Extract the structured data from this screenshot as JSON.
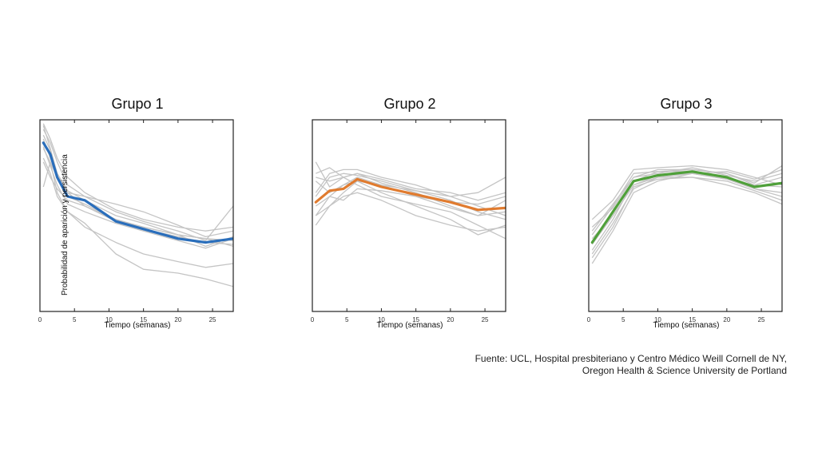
{
  "chart_data": [
    {
      "type": "line",
      "title": "Grupo 1",
      "xlabel": "Tiempo (semanas)",
      "ylabel": "Probabilidad de aparición y persistencia",
      "xlim": [
        0,
        28
      ],
      "ylim": [
        0,
        1
      ],
      "xticks": [
        0,
        5,
        10,
        15,
        20,
        25
      ],
      "accent_color": "#2a6ebb",
      "background_color": "#c4c4c4",
      "grid": false,
      "mean": {
        "x": [
          0.5,
          1.5,
          2.5,
          4,
          6.5,
          11,
          15,
          20,
          24,
          28
        ],
        "y": [
          0.88,
          0.82,
          0.7,
          0.6,
          0.58,
          0.47,
          0.43,
          0.38,
          0.36,
          0.38
        ]
      },
      "background_series": [
        {
          "x": [
            0.5,
            1.5,
            2.5,
            4,
            6.5,
            11,
            15,
            20,
            24,
            28
          ],
          "y": [
            0.97,
            0.85,
            0.72,
            0.62,
            0.55,
            0.47,
            0.44,
            0.4,
            0.34,
            0.39
          ]
        },
        {
          "x": [
            0.5,
            1.5,
            2.5,
            4,
            6.5,
            11,
            15,
            20,
            24,
            28
          ],
          "y": [
            0.8,
            0.72,
            0.6,
            0.52,
            0.44,
            0.36,
            0.3,
            0.26,
            0.23,
            0.25
          ]
        },
        {
          "x": [
            0.5,
            1.5,
            2.5,
            4,
            6.5,
            11,
            15,
            20,
            24,
            28
          ],
          "y": [
            0.98,
            0.9,
            0.8,
            0.7,
            0.62,
            0.53,
            0.48,
            0.44,
            0.42,
            0.44
          ]
        },
        {
          "x": [
            0.5,
            1.5,
            2.5,
            4,
            6.5,
            11,
            15,
            20,
            24,
            28
          ],
          "y": [
            0.85,
            0.78,
            0.62,
            0.52,
            0.46,
            0.3,
            0.22,
            0.2,
            0.17,
            0.13
          ]
        },
        {
          "x": [
            0.5,
            1.5,
            2.5,
            4,
            6.5,
            11,
            15,
            20,
            24,
            28
          ],
          "y": [
            0.9,
            0.8,
            0.72,
            0.63,
            0.58,
            0.5,
            0.46,
            0.4,
            0.38,
            0.37
          ]
        },
        {
          "x": [
            0.5,
            1.5,
            2.5,
            4,
            6.5,
            11,
            15,
            20,
            24,
            28
          ],
          "y": [
            0.65,
            0.78,
            0.7,
            0.62,
            0.6,
            0.56,
            0.52,
            0.45,
            0.39,
            0.42
          ]
        },
        {
          "x": [
            0.5,
            1.5,
            2.5,
            4,
            6.5,
            11,
            15,
            20,
            24,
            28
          ],
          "y": [
            0.92,
            0.84,
            0.7,
            0.6,
            0.56,
            0.48,
            0.43,
            0.39,
            0.36,
            0.35
          ]
        },
        {
          "x": [
            0.5,
            1.5,
            2.5,
            4,
            6.5,
            11,
            15,
            20,
            24,
            28
          ],
          "y": [
            0.86,
            0.76,
            0.66,
            0.56,
            0.52,
            0.46,
            0.42,
            0.37,
            0.33,
            0.38
          ]
        },
        {
          "x": [
            0.5,
            1.5,
            2.5,
            4,
            6.5,
            11,
            15,
            20,
            24,
            28
          ],
          "y": [
            0.95,
            0.88,
            0.78,
            0.66,
            0.6,
            0.52,
            0.47,
            0.42,
            0.37,
            0.55
          ]
        },
        {
          "x": [
            0.5,
            1.5,
            2.5,
            4,
            6.5,
            11,
            15,
            20,
            24,
            28
          ],
          "y": [
            0.78,
            0.7,
            0.64,
            0.58,
            0.55,
            0.48,
            0.44,
            0.4,
            0.38,
            0.34
          ]
        }
      ]
    },
    {
      "type": "line",
      "title": "Grupo 2",
      "xlabel": "Tiempo (semanas)",
      "ylabel": "",
      "xlim": [
        0,
        28
      ],
      "ylim": [
        0,
        1
      ],
      "xticks": [
        0,
        5,
        10,
        15,
        20,
        25
      ],
      "accent_color": "#e07b2f",
      "background_color": "#c4c4c4",
      "grid": false,
      "mean": {
        "x": [
          0.5,
          2.5,
          4.5,
          6.5,
          10,
          15,
          20,
          24,
          28
        ],
        "y": [
          0.57,
          0.63,
          0.64,
          0.69,
          0.65,
          0.61,
          0.57,
          0.53,
          0.54
        ]
      },
      "background_series": [
        {
          "x": [
            0.5,
            2.5,
            4.5,
            6.5,
            10,
            15,
            20,
            24,
            28
          ],
          "y": [
            0.78,
            0.65,
            0.7,
            0.72,
            0.67,
            0.62,
            0.55,
            0.5,
            0.58
          ]
        },
        {
          "x": [
            0.5,
            2.5,
            4.5,
            6.5,
            10,
            15,
            20,
            24,
            28
          ],
          "y": [
            0.5,
            0.6,
            0.66,
            0.68,
            0.62,
            0.55,
            0.48,
            0.4,
            0.45
          ]
        },
        {
          "x": [
            0.5,
            2.5,
            4.5,
            6.5,
            10,
            15,
            20,
            24,
            28
          ],
          "y": [
            0.62,
            0.72,
            0.74,
            0.74,
            0.7,
            0.66,
            0.6,
            0.55,
            0.5
          ]
        },
        {
          "x": [
            0.5,
            2.5,
            4.5,
            6.5,
            10,
            15,
            20,
            24,
            28
          ],
          "y": [
            0.45,
            0.55,
            0.62,
            0.68,
            0.66,
            0.63,
            0.6,
            0.62,
            0.7
          ]
        },
        {
          "x": [
            0.5,
            2.5,
            4.5,
            6.5,
            10,
            15,
            20,
            24,
            28
          ],
          "y": [
            0.7,
            0.68,
            0.7,
            0.66,
            0.6,
            0.56,
            0.52,
            0.45,
            0.38
          ]
        },
        {
          "x": [
            0.5,
            2.5,
            4.5,
            6.5,
            10,
            15,
            20,
            24,
            28
          ],
          "y": [
            0.55,
            0.6,
            0.58,
            0.64,
            0.63,
            0.6,
            0.57,
            0.56,
            0.6
          ]
        },
        {
          "x": [
            0.5,
            2.5,
            4.5,
            6.5,
            10,
            15,
            20,
            24,
            28
          ],
          "y": [
            0.6,
            0.7,
            0.72,
            0.71,
            0.68,
            0.63,
            0.58,
            0.52,
            0.48
          ]
        },
        {
          "x": [
            0.5,
            2.5,
            4.5,
            6.5,
            10,
            15,
            20,
            24,
            28
          ],
          "y": [
            0.68,
            0.62,
            0.66,
            0.7,
            0.66,
            0.6,
            0.54,
            0.5,
            0.52
          ]
        },
        {
          "x": [
            0.5,
            2.5,
            4.5,
            6.5,
            10,
            15,
            20,
            24,
            28
          ],
          "y": [
            0.5,
            0.55,
            0.6,
            0.62,
            0.58,
            0.5,
            0.45,
            0.42,
            0.44
          ]
        },
        {
          "x": [
            0.5,
            2.5,
            4.5,
            6.5,
            10,
            15,
            20,
            24,
            28
          ],
          "y": [
            0.72,
            0.75,
            0.7,
            0.72,
            0.69,
            0.64,
            0.62,
            0.58,
            0.62
          ]
        }
      ]
    },
    {
      "type": "line",
      "title": "Grupo 3",
      "xlabel": "Tiempo (semanas)",
      "ylabel": "",
      "xlim": [
        0,
        28
      ],
      "ylim": [
        0,
        1
      ],
      "xticks": [
        0,
        5,
        10,
        15,
        20,
        25
      ],
      "accent_color": "#4fa03a",
      "background_color": "#c4c4c4",
      "grid": false,
      "mean": {
        "x": [
          0.5,
          3.5,
          6.5,
          10,
          15,
          20,
          24,
          28
        ],
        "y": [
          0.36,
          0.52,
          0.68,
          0.71,
          0.73,
          0.7,
          0.65,
          0.67
        ]
      },
      "background_series": [
        {
          "x": [
            0.5,
            3.5,
            6.5,
            10,
            15,
            20,
            24,
            28
          ],
          "y": [
            0.4,
            0.55,
            0.72,
            0.73,
            0.74,
            0.72,
            0.66,
            0.7
          ]
        },
        {
          "x": [
            0.5,
            3.5,
            6.5,
            10,
            15,
            20,
            24,
            28
          ],
          "y": [
            0.3,
            0.46,
            0.64,
            0.7,
            0.72,
            0.69,
            0.64,
            0.6
          ]
        },
        {
          "x": [
            0.5,
            3.5,
            6.5,
            10,
            15,
            20,
            24,
            28
          ],
          "y": [
            0.48,
            0.58,
            0.74,
            0.75,
            0.76,
            0.74,
            0.7,
            0.66
          ]
        },
        {
          "x": [
            0.5,
            3.5,
            6.5,
            10,
            15,
            20,
            24,
            28
          ],
          "y": [
            0.25,
            0.42,
            0.62,
            0.68,
            0.72,
            0.73,
            0.69,
            0.74
          ]
        },
        {
          "x": [
            0.5,
            3.5,
            6.5,
            10,
            15,
            20,
            24,
            28
          ],
          "y": [
            0.38,
            0.5,
            0.66,
            0.7,
            0.7,
            0.66,
            0.62,
            0.56
          ]
        },
        {
          "x": [
            0.5,
            3.5,
            6.5,
            10,
            15,
            20,
            24,
            28
          ],
          "y": [
            0.42,
            0.56,
            0.7,
            0.72,
            0.75,
            0.71,
            0.68,
            0.72
          ]
        },
        {
          "x": [
            0.5,
            3.5,
            6.5,
            10,
            15,
            20,
            24,
            28
          ],
          "y": [
            0.32,
            0.48,
            0.68,
            0.73,
            0.73,
            0.7,
            0.64,
            0.62
          ]
        },
        {
          "x": [
            0.5,
            3.5,
            6.5,
            10,
            15,
            20,
            24,
            28
          ],
          "y": [
            0.44,
            0.54,
            0.7,
            0.74,
            0.74,
            0.72,
            0.67,
            0.76
          ]
        },
        {
          "x": [
            0.5,
            3.5,
            6.5,
            10,
            15,
            20,
            24,
            28
          ],
          "y": [
            0.35,
            0.5,
            0.66,
            0.71,
            0.72,
            0.69,
            0.66,
            0.65
          ]
        },
        {
          "x": [
            0.5,
            3.5,
            6.5,
            10,
            15,
            20,
            24,
            28
          ],
          "y": [
            0.28,
            0.44,
            0.65,
            0.69,
            0.7,
            0.68,
            0.63,
            0.58
          ]
        }
      ]
    }
  ],
  "source": {
    "line1": "Fuente: UCL, Hospital presbiteriano y Centro Médico Weill Cornell de NY,",
    "line2": "Oregon Health & Science University de Portland"
  }
}
